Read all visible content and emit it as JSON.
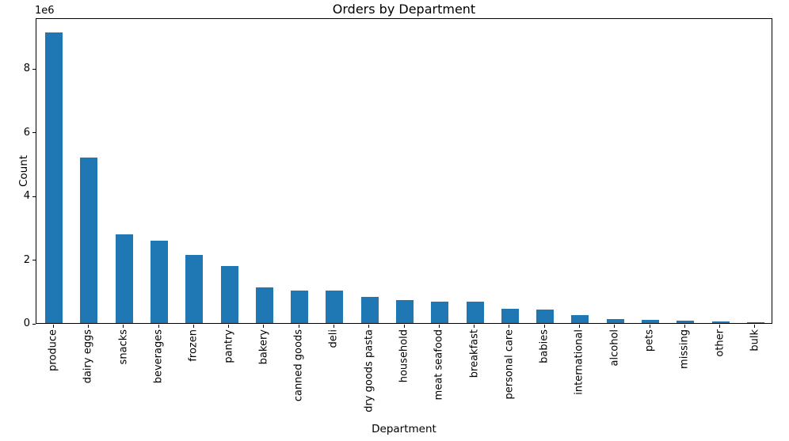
{
  "chart_data": {
    "type": "bar",
    "title": "Orders by Department",
    "xlabel": "Department",
    "ylabel": "Count",
    "y_offset_text": "1e6",
    "categories": [
      "produce",
      "dairy eggs",
      "snacks",
      "beverages",
      "frozen",
      "pantry",
      "bakery",
      "canned goods",
      "deli",
      "dry goods pasta",
      "household",
      "meat seafood",
      "breakfast",
      "personal care",
      "babies",
      "international",
      "alcohol",
      "pets",
      "missing",
      "other",
      "bulk"
    ],
    "values": [
      9140000,
      5190000,
      2780000,
      2580000,
      2130000,
      1800000,
      1130000,
      1020000,
      1010000,
      820000,
      710000,
      680000,
      670000,
      440000,
      420000,
      250000,
      131000,
      92000,
      67000,
      42000,
      37000
    ],
    "ylim": [
      0,
      9600000
    ],
    "yticks": [
      0,
      2000000,
      4000000,
      6000000,
      8000000
    ],
    "ytick_labels": [
      "0",
      "2",
      "4",
      "6",
      "8"
    ],
    "bar_color": "#1f77b4",
    "axis_color": "#000000",
    "grid": false,
    "legend": null,
    "bar_width_fraction": 0.5,
    "tick_label_rotation": 90
  }
}
